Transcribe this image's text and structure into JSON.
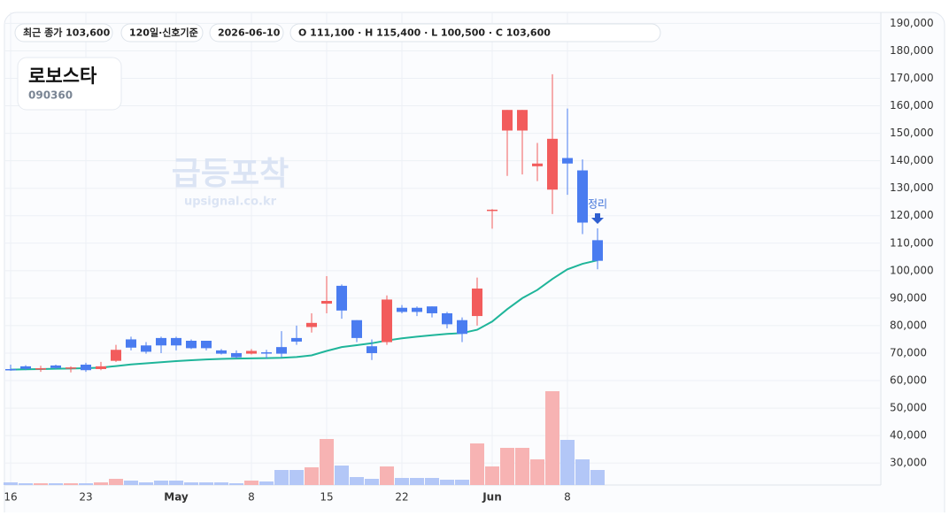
{
  "chips": [
    "최근 종가 103,600",
    "120일·신호기준",
    "2026-06-10",
    "O 111,100 · H 115,400 · L 100,500 · C 103,600"
  ],
  "stock": {
    "name": "로보스타",
    "code": "090360"
  },
  "watermark": {
    "title": "급등포착",
    "site": "upsignal.co.kr"
  },
  "chart_data": {
    "type": "candlestick",
    "categories": [
      "16",
      null,
      null,
      null,
      null,
      "23",
      null,
      null,
      null,
      null,
      null,
      "May",
      null,
      null,
      null,
      null,
      "8",
      null,
      null,
      null,
      null,
      "15",
      null,
      null,
      null,
      null,
      "22",
      null,
      null,
      null,
      null,
      null,
      "Jun",
      null,
      null,
      null,
      null,
      "8",
      null,
      null
    ],
    "ohlc": {
      "up_color": "#f25c5c",
      "down_color": "#4a7cf0",
      "open": [
        64200,
        65200,
        64300,
        65500,
        64500,
        65800,
        64200,
        67200,
        75000,
        72800,
        75500,
        75500,
        74500,
        74500,
        71000,
        70000,
        69800,
        70300,
        72200,
        75500,
        79500,
        88000,
        94500,
        82000,
        72500,
        74000,
        86500,
        86500,
        87000,
        84500,
        82000,
        83500,
        122000,
        151000,
        151000,
        138000,
        129500,
        141000,
        136500,
        111100
      ],
      "high": [
        65800,
        65600,
        65400,
        65800,
        65200,
        66500,
        66800,
        73000,
        76000,
        74000,
        76000,
        76000,
        75000,
        74500,
        71500,
        71000,
        71500,
        71200,
        78000,
        80000,
        84500,
        98000,
        95000,
        82000,
        75000,
        91000,
        87500,
        87000,
        87000,
        85000,
        83000,
        97500,
        122400,
        158500,
        158500,
        146500,
        171500,
        159000,
        140500,
        115400
      ],
      "low": [
        63600,
        63800,
        63200,
        64200,
        63000,
        63200,
        63800,
        66800,
        71000,
        69800,
        70000,
        71000,
        71500,
        71000,
        69500,
        68000,
        69500,
        68000,
        68500,
        73000,
        77500,
        84500,
        82500,
        74000,
        67500,
        73000,
        84500,
        83500,
        83000,
        79000,
        74000,
        80000,
        115300,
        134500,
        135000,
        132600,
        120600,
        127600,
        113300,
        100500
      ],
      "close": [
        64000,
        64300,
        64500,
        64600,
        64800,
        63800,
        65200,
        71200,
        72000,
        70500,
        72800,
        72800,
        71800,
        71800,
        69800,
        68500,
        70800,
        70000,
        69800,
        74200,
        81000,
        89000,
        85500,
        75500,
        70000,
        89500,
        85000,
        85000,
        84500,
        80500,
        77000,
        93500,
        122200,
        158500,
        158500,
        139000,
        148000,
        139000,
        117500,
        103600
      ]
    },
    "ma": {
      "color": "#1fb59a",
      "values": [
        64000,
        64100,
        64200,
        64300,
        64400,
        64500,
        64700,
        65300,
        65900,
        66300,
        66700,
        67100,
        67400,
        67700,
        67900,
        68000,
        68100,
        68200,
        68300,
        68600,
        69200,
        70800,
        72200,
        72900,
        73600,
        74600,
        75400,
        76000,
        76500,
        77000,
        77300,
        78500,
        81500,
        86000,
        90000,
        93000,
        97000,
        100500,
        102500,
        103800
      ]
    },
    "volume": {
      "up_color": "#f7b3b3",
      "down_color": "#b3c7f7",
      "values": [
        3,
        2,
        2,
        2,
        2,
        2,
        3,
        7,
        5,
        3,
        5,
        5,
        3,
        3,
        3,
        2,
        5,
        4,
        17,
        17,
        20,
        52,
        22,
        9,
        7,
        21,
        8,
        8,
        8,
        6,
        6,
        47,
        21,
        42,
        42,
        29,
        106,
        51,
        29,
        17
      ]
    },
    "annotation": {
      "text": "정리",
      "index": 39
    },
    "ylim": [
      22000,
      194000
    ],
    "yticks": [
      {
        "value": 190000,
        "label": "190,000"
      },
      {
        "value": 180000,
        "label": "180,000"
      },
      {
        "value": 170000,
        "label": "170,000"
      },
      {
        "value": 160000,
        "label": "160,000"
      },
      {
        "value": 150000,
        "label": "150,000"
      },
      {
        "value": 140000,
        "label": "140,000"
      },
      {
        "value": 130000,
        "label": "130,000"
      },
      {
        "value": 120000,
        "label": "120,000"
      },
      {
        "value": 110000,
        "label": "110,000"
      },
      {
        "value": 100000,
        "label": "100,000"
      },
      {
        "value": 90000,
        "label": "90,000"
      },
      {
        "value": 80000,
        "label": "80,000"
      },
      {
        "value": 70000,
        "label": "70,000"
      },
      {
        "value": 60000,
        "label": "60,000"
      },
      {
        "value": 50000,
        "label": "50,000"
      },
      {
        "value": 40000,
        "label": "40,000"
      },
      {
        "value": 30000,
        "label": "30,000"
      }
    ],
    "grid": true
  }
}
